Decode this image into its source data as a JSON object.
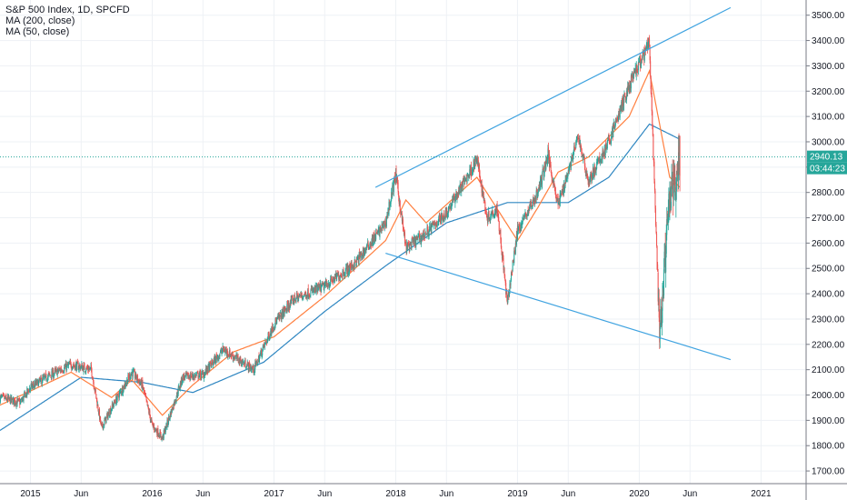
{
  "legend": {
    "title": "S&P 500 Index, 1D, SPCFD",
    "ma200": "MA (200, close)",
    "ma50": "MA (50, close)"
  },
  "price_tag": {
    "price": "2940.13",
    "countdown": "03:44:23"
  },
  "colors": {
    "up": "#26a69a",
    "down": "#ef5350",
    "ma200": "#2e86c1",
    "ma50": "#ff7f3f",
    "trendline": "#3fa3e0",
    "hline": "#26a69a",
    "grid": "#eef1f5",
    "axis": "#787b86"
  },
  "chart_data": {
    "type": "candlestick",
    "title": "S&P 500 Index, 1D, SPCFD",
    "ylim": [
      1650,
      3560
    ],
    "y_ticks": [
      "3500.00",
      "3400.00",
      "3300.00",
      "3200.00",
      "3100.00",
      "3000.00",
      "2900.00",
      "2800.00",
      "2700.00",
      "2600.00",
      "2500.00",
      "2400.00",
      "2300.00",
      "2200.00",
      "2100.00",
      "2000.00",
      "1900.00",
      "1800.00",
      "1700.00"
    ],
    "x_ticks": [
      "2015",
      "Jun",
      "2016",
      "Jun",
      "2017",
      "Jun",
      "2018",
      "Jun",
      "2019",
      "Jun",
      "2020",
      "Jun",
      "2021"
    ],
    "x_tick_dates": [
      "2015-01",
      "2015-06",
      "2016-01",
      "2016-06",
      "2017-01",
      "2017-06",
      "2018-01",
      "2018-06",
      "2019-01",
      "2019-06",
      "2020-01",
      "2020-06",
      "2021-01"
    ],
    "price_keypoints": [
      [
        "2014-10",
        1990
      ],
      [
        "2014-12",
        1970
      ],
      [
        "2015-01",
        2030
      ],
      [
        "2015-03",
        2080
      ],
      [
        "2015-05",
        2120
      ],
      [
        "2015-07",
        2100
      ],
      [
        "2015-08",
        1870
      ],
      [
        "2015-09",
        1950
      ],
      [
        "2015-11",
        2090
      ],
      [
        "2015-12",
        2040
      ],
      [
        "2016-01",
        1880
      ],
      [
        "2016-02",
        1830
      ],
      [
        "2016-04",
        2070
      ],
      [
        "2016-06",
        2080
      ],
      [
        "2016-08",
        2180
      ],
      [
        "2016-11",
        2100
      ],
      [
        "2017-01",
        2280
      ],
      [
        "2017-03",
        2380
      ],
      [
        "2017-06",
        2430
      ],
      [
        "2017-09",
        2520
      ],
      [
        "2017-12",
        2680
      ],
      [
        "2018-01",
        2870
      ],
      [
        "2018-02",
        2580
      ],
      [
        "2018-04",
        2640
      ],
      [
        "2018-06",
        2720
      ],
      [
        "2018-09",
        2930
      ],
      [
        "2018-10",
        2700
      ],
      [
        "2018-11",
        2740
      ],
      [
        "2018-12",
        2360
      ],
      [
        "2019-01",
        2650
      ],
      [
        "2019-03",
        2800
      ],
      [
        "2019-04",
        2950
      ],
      [
        "2019-05",
        2750
      ],
      [
        "2019-07",
        3020
      ],
      [
        "2019-08",
        2840
      ],
      [
        "2019-10",
        3000
      ],
      [
        "2019-12",
        3220
      ],
      [
        "2020-02",
        3390
      ],
      [
        "2020-03",
        2240
      ],
      [
        "2020-04",
        2780
      ],
      [
        "2020-05",
        2940
      ]
    ],
    "series": [
      {
        "name": "MA (200, close)",
        "keypoints": [
          [
            "2014-10",
            1860
          ],
          [
            "2015-06",
            2070
          ],
          [
            "2015-12",
            2050
          ],
          [
            "2016-05",
            2010
          ],
          [
            "2016-12",
            2130
          ],
          [
            "2017-06",
            2330
          ],
          [
            "2017-12",
            2510
          ],
          [
            "2018-06",
            2680
          ],
          [
            "2018-12",
            2760
          ],
          [
            "2019-06",
            2760
          ],
          [
            "2019-10",
            2860
          ],
          [
            "2020-02",
            3070
          ],
          [
            "2020-05",
            3010
          ]
        ]
      },
      {
        "name": "MA (50, close)",
        "keypoints": [
          [
            "2014-10",
            1960
          ],
          [
            "2015-05",
            2090
          ],
          [
            "2015-09",
            1990
          ],
          [
            "2015-11",
            2060
          ],
          [
            "2016-02",
            1920
          ],
          [
            "2016-05",
            2040
          ],
          [
            "2016-09",
            2170
          ],
          [
            "2017-01",
            2230
          ],
          [
            "2017-06",
            2390
          ],
          [
            "2017-12",
            2610
          ],
          [
            "2018-02",
            2770
          ],
          [
            "2018-04",
            2680
          ],
          [
            "2018-09",
            2860
          ],
          [
            "2019-01",
            2610
          ],
          [
            "2019-03",
            2740
          ],
          [
            "2019-05",
            2880
          ],
          [
            "2019-08",
            2940
          ],
          [
            "2019-12",
            3100
          ],
          [
            "2020-02",
            3280
          ],
          [
            "2020-04",
            2860
          ],
          [
            "2020-05",
            2820
          ]
        ]
      }
    ],
    "trendlines": [
      {
        "name": "upper-trendline",
        "from": [
          "2017-11",
          2820
        ],
        "to": [
          "2020-10",
          3530
        ]
      },
      {
        "name": "lower-trendline",
        "from": [
          "2017-12",
          2560
        ],
        "to": [
          "2020-10",
          2140
        ]
      }
    ],
    "hline": 2940.13,
    "last_price": "2940.13",
    "grid": true
  }
}
